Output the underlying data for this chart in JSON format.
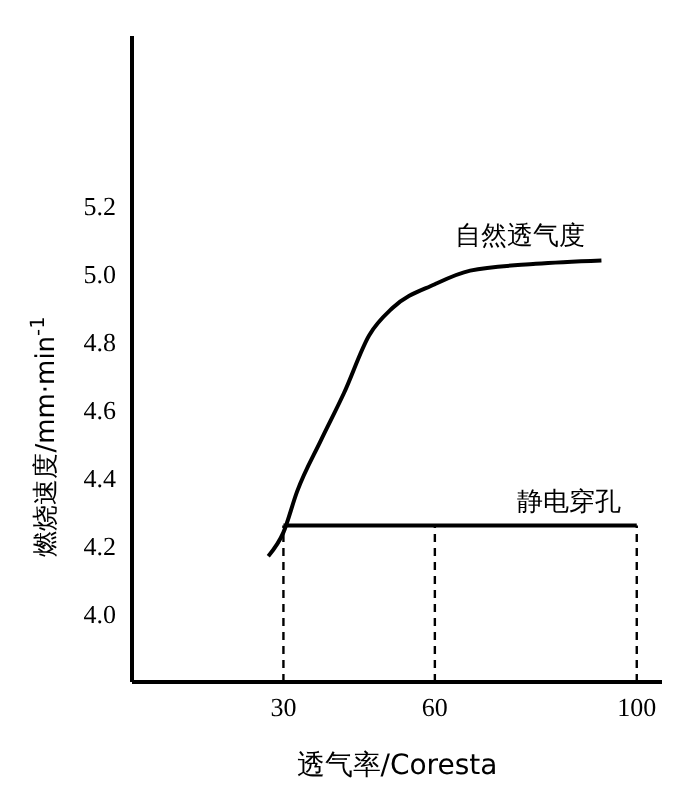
{
  "chart_data": {
    "type": "line",
    "xlabel": "透气率/Coresta",
    "ylabel": "燃烧速度/mm·min$^{-1}$",
    "xlim": [
      0,
      105
    ],
    "xticks": [
      30,
      60,
      100
    ],
    "ylim": [
      3.8,
      5.7
    ],
    "yticks": [
      {
        "value": 4,
        "label": "4.0"
      },
      4.2,
      4.4,
      4.6,
      4.8,
      {
        "value": 5,
        "label": "5.0"
      },
      5.2
    ],
    "grid": false,
    "legend": false,
    "marker": "none",
    "series": [
      {
        "name": "自然透气度",
        "color": "#000000",
        "x": [
          27,
          30,
          32.7,
          37.4,
          42,
          47,
          51.6,
          60,
          67,
          80,
          93
        ],
        "values": [
          4.17,
          4.24,
          4.36,
          4.51,
          4.65,
          4.82,
          4.9,
          4.97,
          5.01,
          5.03,
          5.04
        ]
      },
      {
        "name": "静电穿孔",
        "color": "#000000",
        "x": [
          30,
          60,
          100
        ],
        "values": [
          4.26,
          4.26,
          4.26
        ]
      },
      {
        "color": "#000000",
        "line_style": "dashed",
        "x": [
          30,
          30
        ],
        "values": [
          3.8,
          4.26
        ]
      },
      {
        "color": "#000000",
        "line_style": "dashed",
        "x": [
          60,
          60
        ],
        "values": [
          3.8,
          4.26
        ]
      },
      {
        "color": "#000000",
        "line_style": "dashed",
        "x": [
          100,
          100
        ],
        "values": [
          3.8,
          4.26
        ]
      }
    ]
  }
}
